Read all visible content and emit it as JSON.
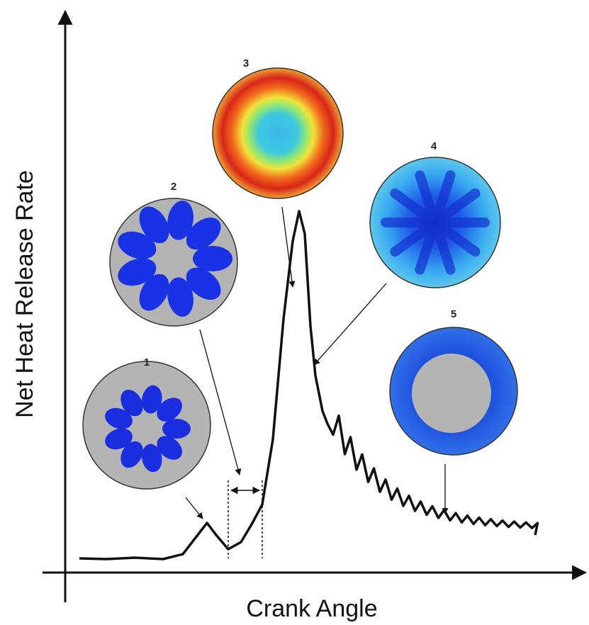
{
  "axes": {
    "y_label": "Net Heat Release Rate",
    "x_label": "Crank Angle"
  },
  "images": [
    {
      "label": "1"
    },
    {
      "label": "2"
    },
    {
      "label": "3"
    },
    {
      "label": "4"
    },
    {
      "label": "5"
    }
  ]
}
